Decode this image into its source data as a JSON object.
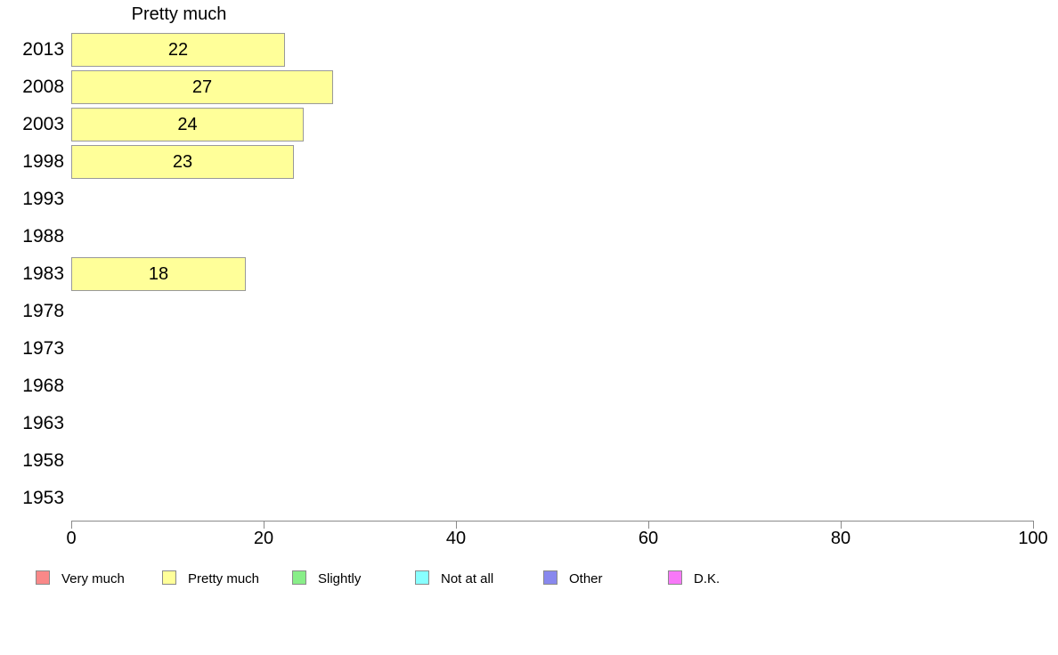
{
  "chart_data": {
    "type": "bar",
    "orientation": "horizontal",
    "title": "Pretty much",
    "categories": [
      "2013",
      "2008",
      "2003",
      "1998",
      "1993",
      "1988",
      "1983",
      "1978",
      "1973",
      "1968",
      "1963",
      "1958",
      "1953"
    ],
    "values": [
      22,
      27,
      24,
      23,
      null,
      null,
      18,
      null,
      null,
      null,
      null,
      null,
      null
    ],
    "bar_color": "#FFFF99",
    "bar_border_color": "#999999",
    "xlabel": "",
    "ylabel": "",
    "xlim": [
      0,
      100
    ],
    "xticks": [
      0,
      20,
      40,
      60,
      80,
      100
    ],
    "grid": false,
    "axis_color": "#8a8a8a",
    "legend_position": "bottom",
    "legend": [
      {
        "label": "Very much",
        "color": "#F98888"
      },
      {
        "label": "Pretty much",
        "color": "#FFFF99"
      },
      {
        "label": "Slightly",
        "color": "#88EE88"
      },
      {
        "label": "Not at all",
        "color": "#88FFFF"
      },
      {
        "label": "Other",
        "color": "#8888EE"
      },
      {
        "label": "D.K.",
        "color": "#F878F8"
      }
    ]
  }
}
